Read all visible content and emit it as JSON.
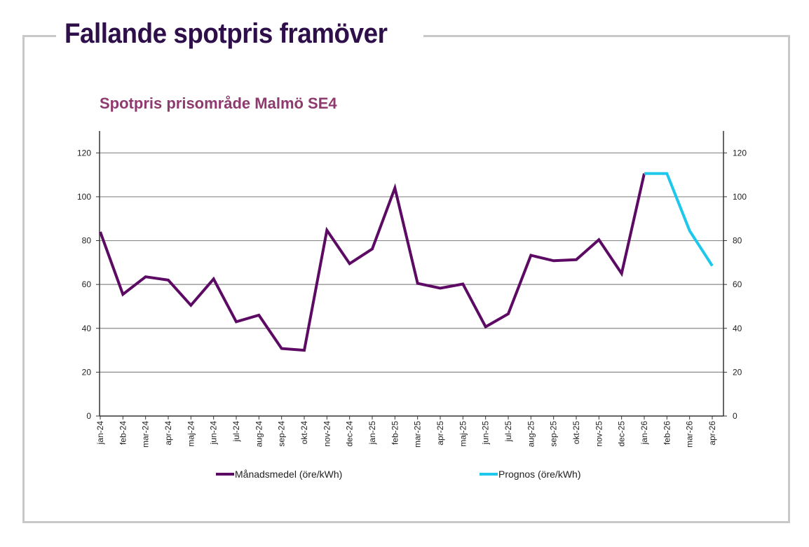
{
  "header": {
    "title": "Fallande spotpris framöver"
  },
  "chart_data": {
    "type": "line",
    "title": "Spotpris prisområde Malmö SE4",
    "xlabel": "",
    "ylabel": "",
    "ylim": [
      0,
      130
    ],
    "yticks": [
      0,
      20,
      40,
      60,
      80,
      100,
      120
    ],
    "y2ticks": [
      0,
      20,
      40,
      60,
      80,
      100,
      120
    ],
    "grid": true,
    "legend_position": "bottom",
    "categories": [
      "jan-24",
      "feb-24",
      "mar-24",
      "apr-24",
      "maj-24",
      "jun-24",
      "jul-24",
      "aug-24",
      "sep-24",
      "okt-24",
      "nov-24",
      "dec-24",
      "jan-25",
      "feb-25",
      "mar-25",
      "apr-25",
      "maj-25",
      "jun-25",
      "jul-25",
      "aug-25",
      "sep-25",
      "okt-25",
      "nov-25",
      "dec-25",
      "jan-26",
      "feb-26",
      "mar-26",
      "apr-26"
    ],
    "series": [
      {
        "name": "Månadsmedel (öre/kWh)",
        "color": "#5c0a63",
        "values": [
          84,
          55.5,
          63.5,
          62,
          50.5,
          62.5,
          43,
          46,
          30.8,
          30,
          84.7,
          69.5,
          76.2,
          104,
          60.5,
          58.3,
          60.2,
          40.7,
          46.6,
          73.3,
          70.8,
          71.3,
          80.4,
          65,
          110.6,
          null,
          null,
          null
        ]
      },
      {
        "name": "Prognos (öre/kWh)",
        "color": "#1ec8ec",
        "values": [
          null,
          null,
          null,
          null,
          null,
          null,
          null,
          null,
          null,
          null,
          null,
          null,
          null,
          null,
          null,
          null,
          null,
          null,
          null,
          null,
          null,
          null,
          null,
          null,
          110.6,
          110.6,
          84.5,
          68.5
        ]
      }
    ]
  }
}
